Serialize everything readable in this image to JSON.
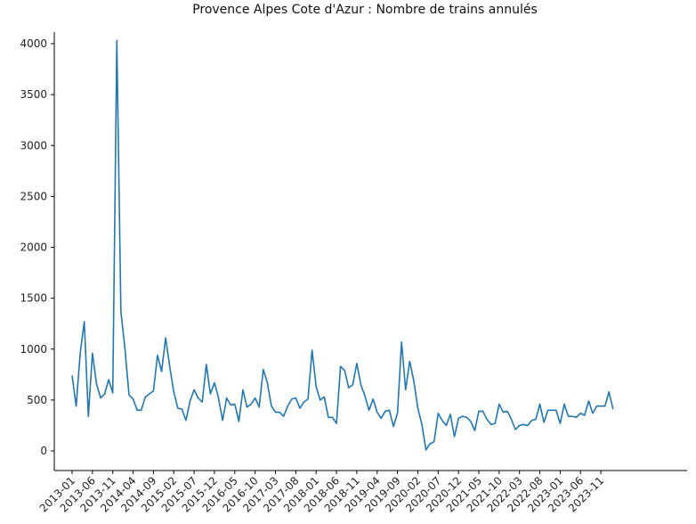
{
  "chart_data": {
    "type": "line",
    "title": "Provence Alpes Cote d'Azur : Nombre de trains annulés",
    "xlabel": "",
    "ylabel": "",
    "ylim": [
      0,
      4000
    ],
    "yticks": [
      0,
      500,
      1000,
      1500,
      2000,
      2500,
      3000,
      3500,
      4000
    ],
    "xtick_labels": [
      "2013-01",
      "2013-06",
      "2013-11",
      "2014-04",
      "2014-09",
      "2015-02",
      "2015-07",
      "2015-12",
      "2016-05",
      "2016-10",
      "2017-03",
      "2017-08",
      "2018-01",
      "2018-06",
      "2018-11",
      "2019-04",
      "2019-09",
      "2020-02",
      "2020-07",
      "2020-12",
      "2021-05",
      "2021-10",
      "2022-03",
      "2022-08",
      "2023-01",
      "2023-06",
      "2023-11"
    ],
    "grid": false,
    "line_color": "#1f77b4",
    "series": [
      {
        "x_start": "2013-01",
        "frequency": "monthly",
        "values": [
          740,
          440,
          960,
          1270,
          340,
          960,
          660,
          520,
          560,
          700,
          570,
          4030,
          1370,
          1000,
          550,
          510,
          400,
          400,
          530,
          560,
          590,
          940,
          780,
          1110,
          830,
          580,
          420,
          410,
          300,
          490,
          600,
          520,
          480,
          850,
          560,
          670,
          520,
          300,
          520,
          450,
          460,
          290,
          600,
          430,
          460,
          520,
          430,
          800,
          670,
          440,
          380,
          380,
          340,
          440,
          510,
          520,
          420,
          480,
          510,
          990,
          630,
          500,
          530,
          330,
          330,
          270,
          830,
          790,
          620,
          650,
          860,
          650,
          540,
          400,
          510,
          380,
          320,
          390,
          400,
          240,
          370,
          1070,
          600,
          880,
          690,
          420,
          260,
          10,
          70,
          90,
          370,
          300,
          250,
          360,
          140,
          320,
          340,
          330,
          290,
          200,
          390,
          390,
          310,
          260,
          270,
          460,
          380,
          390,
          310,
          210,
          250,
          260,
          250,
          300,
          310,
          460,
          280,
          400,
          400,
          400,
          270,
          460,
          340,
          340,
          330,
          370,
          350,
          490,
          370,
          440,
          440,
          440,
          580,
          410
        ]
      }
    ]
  }
}
